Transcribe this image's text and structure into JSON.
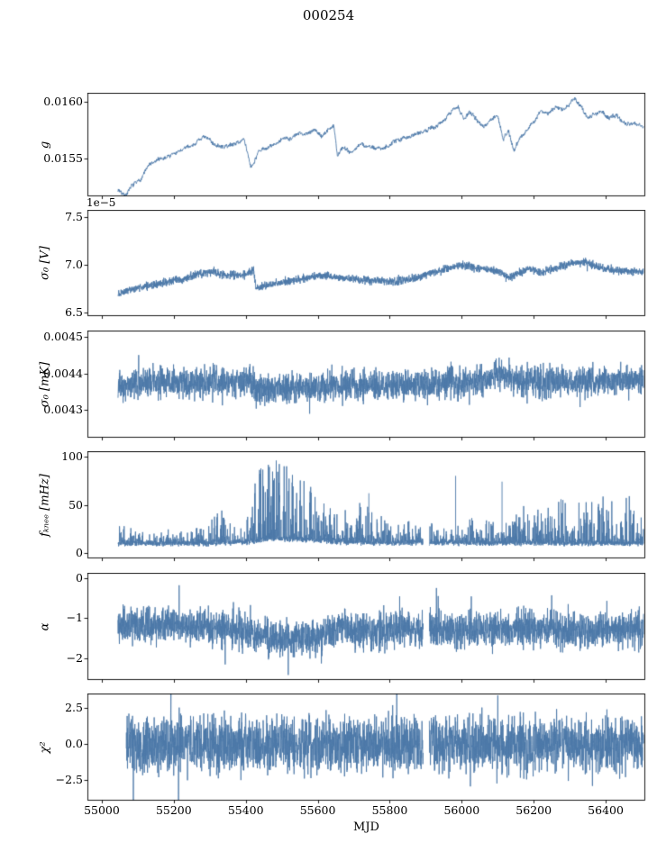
{
  "chart_data": {
    "type": "line",
    "title": "000254",
    "xlabel": "MJD",
    "line_color": "#4c78a8",
    "xlim": [
      54960,
      56510
    ],
    "xticks": [
      55000,
      55200,
      55400,
      55600,
      55800,
      56000,
      56200,
      56400
    ],
    "xtick_labels": [
      "55000",
      "55200",
      "55400",
      "55600",
      "55800",
      "56000",
      "56200",
      "56400"
    ],
    "panels": [
      {
        "name": "g",
        "ylabel": "g",
        "offset_text": "",
        "ylim": [
          0.015175,
          0.016075
        ],
        "yticks": [
          0.0155,
          0.016
        ],
        "ytick_labels": [
          "0.0155",
          "0.0160"
        ],
        "style": "smooth",
        "seed": 7,
        "noise_amp": 6e-05,
        "x_start": 55045,
        "x_end": 56505,
        "gaps": [],
        "spikes": [],
        "trend": [
          [
            55045,
            0.01523
          ],
          [
            55065,
            0.01519
          ],
          [
            55085,
            0.01526
          ],
          [
            55105,
            0.01531
          ],
          [
            55130,
            0.01544
          ],
          [
            55160,
            0.01549
          ],
          [
            55190,
            0.01553
          ],
          [
            55220,
            0.01557
          ],
          [
            55250,
            0.01562
          ],
          [
            55280,
            0.01569
          ],
          [
            55300,
            0.01566
          ],
          [
            55330,
            0.0156
          ],
          [
            55360,
            0.01562
          ],
          [
            55395,
            0.01567
          ],
          [
            55415,
            0.01543
          ],
          [
            55435,
            0.01556
          ],
          [
            55465,
            0.0156
          ],
          [
            55500,
            0.01566
          ],
          [
            55530,
            0.0157
          ],
          [
            55560,
            0.01572
          ],
          [
            55590,
            0.01576
          ],
          [
            55610,
            0.0157
          ],
          [
            55630,
            0.01575
          ],
          [
            55645,
            0.0158
          ],
          [
            55655,
            0.01552
          ],
          [
            55670,
            0.01561
          ],
          [
            55690,
            0.01556
          ],
          [
            55720,
            0.01563
          ],
          [
            55750,
            0.01559
          ],
          [
            55780,
            0.0156
          ],
          [
            55810,
            0.01565
          ],
          [
            55840,
            0.01568
          ],
          [
            55870,
            0.01572
          ],
          [
            55900,
            0.01576
          ],
          [
            55930,
            0.01579
          ],
          [
            55955,
            0.01585
          ],
          [
            55975,
            0.01592
          ],
          [
            55990,
            0.01597
          ],
          [
            56005,
            0.01585
          ],
          [
            56020,
            0.0159
          ],
          [
            56040,
            0.01585
          ],
          [
            56060,
            0.01578
          ],
          [
            56080,
            0.01585
          ],
          [
            56100,
            0.01588
          ],
          [
            56115,
            0.01568
          ],
          [
            56130,
            0.01575
          ],
          [
            56145,
            0.01557
          ],
          [
            56160,
            0.01568
          ],
          [
            56180,
            0.01575
          ],
          [
            56200,
            0.01583
          ],
          [
            56220,
            0.01592
          ],
          [
            56240,
            0.0159
          ],
          [
            56260,
            0.01595
          ],
          [
            56280,
            0.01592
          ],
          [
            56300,
            0.01598
          ],
          [
            56315,
            0.01603
          ],
          [
            56330,
            0.01596
          ],
          [
            56350,
            0.01586
          ],
          [
            56370,
            0.0159
          ],
          [
            56390,
            0.01592
          ],
          [
            56410,
            0.01585
          ],
          [
            56430,
            0.01588
          ],
          [
            56450,
            0.01583
          ],
          [
            56470,
            0.01581
          ],
          [
            56490,
            0.0158
          ],
          [
            56505,
            0.01579
          ]
        ]
      },
      {
        "name": "sigma0_V",
        "ylabel": "σ₀ [V]",
        "offset_text": "1e−5",
        "ylim": [
          6.47,
          7.57
        ],
        "yticks": [
          6.5,
          7.0,
          7.5
        ],
        "ytick_labels": [
          "6.5",
          "7.0",
          "7.5"
        ],
        "style": "fuzz",
        "seed": 12,
        "noise_amp": 0.03,
        "x_start": 55045,
        "x_end": 56505,
        "gaps": [],
        "spikes": [],
        "trend": [
          [
            55045,
            6.7
          ],
          [
            55075,
            6.74
          ],
          [
            55110,
            6.77
          ],
          [
            55150,
            6.8
          ],
          [
            55190,
            6.83
          ],
          [
            55230,
            6.86
          ],
          [
            55270,
            6.91
          ],
          [
            55310,
            6.93
          ],
          [
            55340,
            6.9
          ],
          [
            55370,
            6.89
          ],
          [
            55400,
            6.9
          ],
          [
            55422,
            6.95
          ],
          [
            55428,
            6.76
          ],
          [
            55460,
            6.79
          ],
          [
            55500,
            6.82
          ],
          [
            55540,
            6.84
          ],
          [
            55580,
            6.87
          ],
          [
            55620,
            6.89
          ],
          [
            55660,
            6.87
          ],
          [
            55700,
            6.85
          ],
          [
            55740,
            6.84
          ],
          [
            55780,
            6.83
          ],
          [
            55820,
            6.83
          ],
          [
            55860,
            6.85
          ],
          [
            55900,
            6.9
          ],
          [
            55940,
            6.94
          ],
          [
            55980,
            6.98
          ],
          [
            56010,
            7.0
          ],
          [
            56040,
            6.97
          ],
          [
            56070,
            6.95
          ],
          [
            56100,
            6.93
          ],
          [
            56130,
            6.87
          ],
          [
            56160,
            6.92
          ],
          [
            56190,
            6.96
          ],
          [
            56220,
            6.92
          ],
          [
            56250,
            6.96
          ],
          [
            56280,
            6.99
          ],
          [
            56310,
            7.02
          ],
          [
            56340,
            7.03
          ],
          [
            56370,
            6.99
          ],
          [
            56400,
            6.96
          ],
          [
            56440,
            6.94
          ],
          [
            56480,
            6.93
          ],
          [
            56505,
            6.93
          ]
        ]
      },
      {
        "name": "sigma0_mK",
        "ylabel": "σ₀ [mK]",
        "offset_text": "",
        "ylim": [
          0.004226,
          0.004516
        ],
        "yticks": [
          0.0043,
          0.0044,
          0.0045
        ],
        "ytick_labels": [
          "0.0043",
          "0.0044",
          "0.0045"
        ],
        "style": "fuzz",
        "seed": 23,
        "noise_amp": 3e-05,
        "x_start": 55045,
        "x_end": 56505,
        "gaps": [],
        "spikes": [],
        "trend": [
          [
            55045,
            0.004362
          ],
          [
            55080,
            0.004372
          ],
          [
            55120,
            0.004376
          ],
          [
            55160,
            0.004378
          ],
          [
            55200,
            0.004377
          ],
          [
            55240,
            0.004377
          ],
          [
            55280,
            0.004376
          ],
          [
            55320,
            0.004378
          ],
          [
            55360,
            0.004378
          ],
          [
            55400,
            0.00438
          ],
          [
            55422,
            0.004382
          ],
          [
            55428,
            0.004352
          ],
          [
            55470,
            0.004354
          ],
          [
            55520,
            0.004358
          ],
          [
            55570,
            0.00436
          ],
          [
            55610,
            0.004363
          ],
          [
            55650,
            0.004365
          ],
          [
            55700,
            0.004367
          ],
          [
            55750,
            0.004366
          ],
          [
            55800,
            0.004366
          ],
          [
            55850,
            0.004369
          ],
          [
            55900,
            0.004372
          ],
          [
            55950,
            0.004374
          ],
          [
            56000,
            0.004376
          ],
          [
            56040,
            0.004381
          ],
          [
            56080,
            0.00439
          ],
          [
            56110,
            0.004395
          ],
          [
            56140,
            0.004388
          ],
          [
            56180,
            0.00438
          ],
          [
            56220,
            0.004377
          ],
          [
            56260,
            0.004376
          ],
          [
            56300,
            0.004376
          ],
          [
            56340,
            0.004378
          ],
          [
            56380,
            0.004379
          ],
          [
            56420,
            0.00438
          ],
          [
            56460,
            0.004381
          ],
          [
            56505,
            0.004383
          ]
        ]
      },
      {
        "name": "fknee",
        "ylabel": "fₖₙₑₑ [mHz]",
        "offset_text": "",
        "ylim": [
          -5,
          105
        ],
        "yticks": [
          0,
          50,
          100
        ],
        "ytick_labels": [
          "0",
          "50",
          "100"
        ],
        "style": "spiky",
        "seed": 34,
        "noise_amp": 3.5,
        "x_start": 55045,
        "x_end": 56505,
        "gaps": [
          [
            55893,
            55910
          ]
        ],
        "spikes": [
          [
            55742,
            62
          ],
          [
            55983,
            80
          ],
          [
            56112,
            74
          ]
        ],
        "trend": [
          [
            55045,
            10
          ],
          [
            55300,
            10
          ],
          [
            55420,
            12
          ],
          [
            55470,
            15
          ],
          [
            55560,
            14
          ],
          [
            55640,
            12
          ],
          [
            55700,
            11
          ],
          [
            56505,
            10
          ]
        ],
        "envelope": [
          [
            55045,
            22
          ],
          [
            55090,
            14
          ],
          [
            55140,
            13
          ],
          [
            55190,
            16
          ],
          [
            55240,
            14
          ],
          [
            55290,
            22
          ],
          [
            55335,
            40
          ],
          [
            55365,
            20
          ],
          [
            55400,
            16
          ],
          [
            55425,
            60
          ],
          [
            55445,
            88
          ],
          [
            55475,
            85
          ],
          [
            55510,
            78
          ],
          [
            55545,
            62
          ],
          [
            55575,
            68
          ],
          [
            55600,
            50
          ],
          [
            55625,
            40
          ],
          [
            55650,
            30
          ],
          [
            55680,
            32
          ],
          [
            55715,
            45
          ],
          [
            55745,
            35
          ],
          [
            55775,
            26
          ],
          [
            55805,
            24
          ],
          [
            55845,
            24
          ],
          [
            55885,
            20
          ],
          [
            55925,
            20
          ],
          [
            55965,
            22
          ],
          [
            56005,
            22
          ],
          [
            56045,
            26
          ],
          [
            56085,
            20
          ],
          [
            56125,
            22
          ],
          [
            56165,
            40
          ],
          [
            56205,
            42
          ],
          [
            56245,
            40
          ],
          [
            56285,
            48
          ],
          [
            56325,
            42
          ],
          [
            56365,
            45
          ],
          [
            56405,
            50
          ],
          [
            56445,
            48
          ],
          [
            56485,
            50
          ],
          [
            56505,
            42
          ]
        ]
      },
      {
        "name": "alpha",
        "ylabel": "α",
        "offset_text": "",
        "ylim": [
          -2.53,
          0.12
        ],
        "yticks": [
          0,
          -1,
          -2
        ],
        "ytick_labels": [
          "0",
          "−1",
          "−2"
        ],
        "style": "fuzz",
        "seed": 45,
        "noise_amp": 0.33,
        "x_start": 55045,
        "x_end": 56505,
        "gaps": [
          [
            55893,
            55910
          ]
        ],
        "spikes": [],
        "trend": [
          [
            55045,
            -1.15
          ],
          [
            55100,
            -1.18
          ],
          [
            55160,
            -1.15
          ],
          [
            55220,
            -1.18
          ],
          [
            55280,
            -1.22
          ],
          [
            55330,
            -1.25
          ],
          [
            55380,
            -1.3
          ],
          [
            55420,
            -1.35
          ],
          [
            55460,
            -1.45
          ],
          [
            55500,
            -1.52
          ],
          [
            55540,
            -1.5
          ],
          [
            55580,
            -1.45
          ],
          [
            55620,
            -1.38
          ],
          [
            55660,
            -1.28
          ],
          [
            55700,
            -1.3
          ],
          [
            55740,
            -1.32
          ],
          [
            55780,
            -1.3
          ],
          [
            55820,
            -1.32
          ],
          [
            55860,
            -1.28
          ],
          [
            55900,
            -1.28
          ],
          [
            55940,
            -1.3
          ],
          [
            55980,
            -1.32
          ],
          [
            56020,
            -1.3
          ],
          [
            56060,
            -1.28
          ],
          [
            56100,
            -1.26
          ],
          [
            56140,
            -1.3
          ],
          [
            56180,
            -1.28
          ],
          [
            56220,
            -1.3
          ],
          [
            56260,
            -1.28
          ],
          [
            56300,
            -1.32
          ],
          [
            56340,
            -1.3
          ],
          [
            56380,
            -1.28
          ],
          [
            56420,
            -1.3
          ],
          [
            56460,
            -1.3
          ],
          [
            56505,
            -1.3
          ]
        ]
      },
      {
        "name": "chi2",
        "ylabel": "χ²",
        "offset_text": "",
        "ylim": [
          -3.9,
          3.5
        ],
        "yticks": [
          -2.5,
          0.0,
          2.5
        ],
        "ytick_labels": [
          "−2.5",
          "0.0",
          "2.5"
        ],
        "style": "fuzz",
        "seed": 56,
        "noise_amp": 1.4,
        "x_start": 55068,
        "x_end": 56505,
        "gaps": [
          [
            55893,
            55910
          ]
        ],
        "spikes": [],
        "trend": [
          [
            55068,
            0.0
          ],
          [
            56505,
            0.0
          ]
        ]
      }
    ]
  }
}
